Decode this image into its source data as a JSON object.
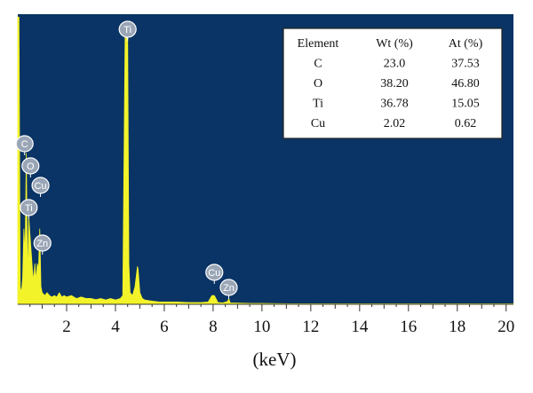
{
  "chart_data": {
    "type": "line",
    "title": "",
    "xlabel": "(keV)",
    "ylabel": "",
    "xlim": [
      0,
      20.3
    ],
    "ylim": [
      0,
      100
    ],
    "xticks": [
      "2",
      "4",
      "6",
      "8",
      "10",
      "12",
      "14",
      "16",
      "18",
      "20"
    ],
    "xtick_values": [
      2,
      4,
      6,
      8,
      10,
      12,
      14,
      16,
      18,
      20
    ],
    "grid": false,
    "colors": {
      "plot_background": "#0a3465",
      "spectrum": "#f3f32a",
      "label_badge": "#9aa6b6",
      "table_background": "#ffffff"
    },
    "series": [
      {
        "name": "",
        "x": [
          0.0,
          0.05,
          0.1,
          0.15,
          0.2,
          0.25,
          0.3,
          0.35,
          0.4,
          0.45,
          0.5,
          0.55,
          0.6,
          0.65,
          0.7,
          0.75,
          0.8,
          0.85,
          0.9,
          0.95,
          1.0,
          1.1,
          1.2,
          1.3,
          1.4,
          1.5,
          1.6,
          1.7,
          1.8,
          1.9,
          2.0,
          2.2,
          2.4,
          2.6,
          2.8,
          3.0,
          3.2,
          3.4,
          3.6,
          3.8,
          4.0,
          4.2,
          4.3,
          4.4,
          4.45,
          4.5,
          4.55,
          4.6,
          4.7,
          4.8,
          4.9,
          4.93,
          5.0,
          5.1,
          5.2,
          5.4,
          5.6,
          5.8,
          6.0,
          6.5,
          7.0,
          7.5,
          7.8,
          7.95,
          8.05,
          8.2,
          8.4,
          8.6,
          8.64,
          8.7,
          9.0,
          9.5,
          10.0,
          11.0,
          12.0,
          14.0,
          16.0,
          18.0,
          20.0,
          20.3
        ],
        "values": [
          99,
          99,
          6,
          4,
          9,
          26,
          17,
          52,
          7,
          30,
          24,
          18,
          12,
          8,
          14,
          8,
          14,
          12,
          26,
          6,
          4,
          3,
          4,
          3,
          2.5,
          3,
          2.5,
          4,
          2.5,
          3,
          2.5,
          3,
          2,
          2.5,
          2,
          2,
          1.6,
          2,
          1.5,
          2,
          1.5,
          2,
          3,
          96,
          96,
          94,
          14,
          4,
          3,
          6,
          13,
          12,
          4,
          2,
          1.5,
          1.2,
          1,
          0.8,
          0.8,
          0.8,
          0.6,
          0.6,
          0.8,
          3,
          3,
          0.6,
          0.5,
          1,
          2,
          0.5,
          0.4,
          0.3,
          0.3,
          0.2,
          0.2,
          0.2,
          0.2,
          0.2,
          0.2,
          0.2
        ]
      }
    ],
    "annotations": [
      {
        "text": "Ti",
        "x": 4.5
      },
      {
        "text": "C",
        "x": 0.28
      },
      {
        "text": "O",
        "x": 0.52
      },
      {
        "text": "Cu",
        "x": 0.93
      },
      {
        "text": "Ti",
        "x": 0.45
      },
      {
        "text": "Zn",
        "x": 1.01
      },
      {
        "text": "Cu",
        "x": 8.05
      },
      {
        "text": "Zn",
        "x": 8.64
      }
    ],
    "table": {
      "headers": [
        "Element",
        "Wt (%)",
        "At (%)"
      ],
      "rows": [
        [
          "C",
          "23.0",
          "37.53"
        ],
        [
          "O",
          "38.20",
          "46.80"
        ],
        [
          "Ti",
          "36.78",
          "15.05"
        ],
        [
          "Cu",
          "2.02",
          "0.62"
        ]
      ]
    }
  }
}
